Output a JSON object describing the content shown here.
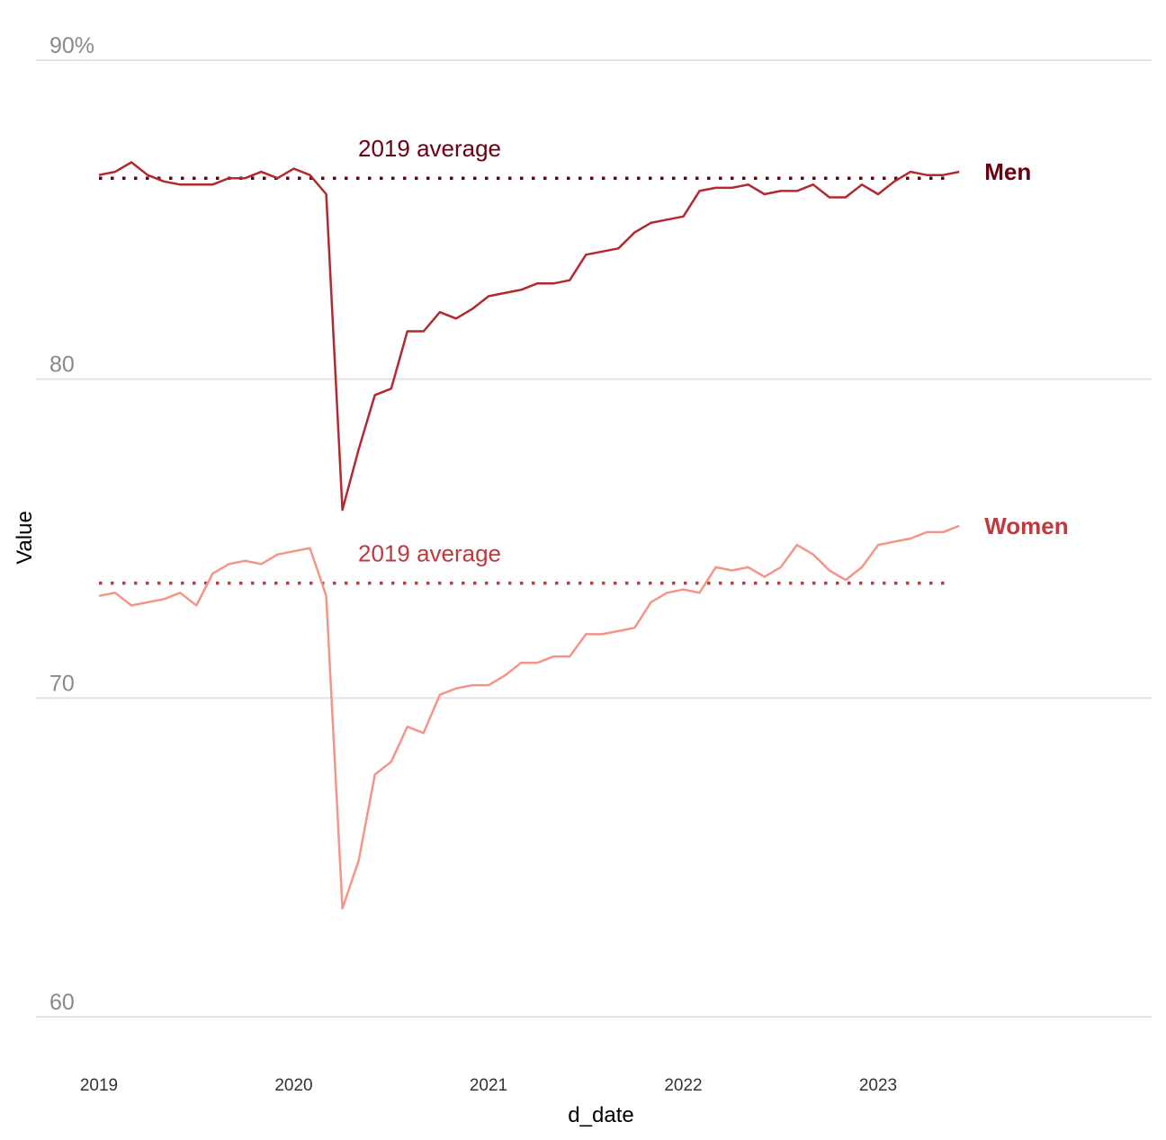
{
  "chart_data": {
    "type": "line",
    "title": "",
    "xlabel": "d_date",
    "ylabel": "Value",
    "xlim": [
      "2019-01",
      "2023-06"
    ],
    "ylim": [
      60,
      90
    ],
    "y_ticks": [
      {
        "value": 90,
        "label": "90%"
      },
      {
        "value": 80,
        "label": "80"
      },
      {
        "value": 70,
        "label": "70"
      },
      {
        "value": 60,
        "label": "60"
      }
    ],
    "x_ticks": [
      {
        "value": "2019-01",
        "label": "2019"
      },
      {
        "value": "2020-01",
        "label": "2020"
      },
      {
        "value": "2021-01",
        "label": "2021"
      },
      {
        "value": "2022-01",
        "label": "2022"
      },
      {
        "value": "2023-01",
        "label": "2023"
      }
    ],
    "grid": true,
    "legend": "none",
    "x": [
      "2019-01",
      "2019-02",
      "2019-03",
      "2019-04",
      "2019-05",
      "2019-06",
      "2019-07",
      "2019-08",
      "2019-09",
      "2019-10",
      "2019-11",
      "2019-12",
      "2020-01",
      "2020-02",
      "2020-03",
      "2020-04",
      "2020-05",
      "2020-06",
      "2020-07",
      "2020-08",
      "2020-09",
      "2020-10",
      "2020-11",
      "2020-12",
      "2021-01",
      "2021-02",
      "2021-03",
      "2021-04",
      "2021-05",
      "2021-06",
      "2021-07",
      "2021-08",
      "2021-09",
      "2021-10",
      "2021-11",
      "2021-12",
      "2022-01",
      "2022-02",
      "2022-03",
      "2022-04",
      "2022-05",
      "2022-06",
      "2022-07",
      "2022-08",
      "2022-09",
      "2022-10",
      "2022-11",
      "2022-12",
      "2023-01",
      "2023-02",
      "2023-03",
      "2023-04",
      "2023-05",
      "2023-06"
    ],
    "series": [
      {
        "name": "Men",
        "color": "#b02a30",
        "label_color": "#6b0011",
        "average": 86.3,
        "average_label": "2019 average",
        "values": [
          86.4,
          86.5,
          86.8,
          86.4,
          86.2,
          86.1,
          86.1,
          86.1,
          86.3,
          86.3,
          86.5,
          86.3,
          86.6,
          86.4,
          85.8,
          75.9,
          77.8,
          79.5,
          79.7,
          81.5,
          81.5,
          82.1,
          81.9,
          82.2,
          82.6,
          82.7,
          82.8,
          83.0,
          83.0,
          83.1,
          83.9,
          84.0,
          84.1,
          84.6,
          84.9,
          85.0,
          85.1,
          85.9,
          86.0,
          86.0,
          86.1,
          85.8,
          85.9,
          85.9,
          86.1,
          85.7,
          85.7,
          86.1,
          85.8,
          86.2,
          86.5,
          86.4,
          86.4,
          86.5
        ]
      },
      {
        "name": "Women",
        "color": "#f4958a",
        "label_color": "#c0393d",
        "average": 73.6,
        "average_label": "2019 average",
        "values": [
          73.2,
          73.3,
          72.9,
          73.0,
          73.1,
          73.3,
          72.9,
          73.9,
          74.2,
          74.3,
          74.2,
          74.5,
          74.6,
          74.7,
          73.2,
          63.4,
          64.9,
          67.6,
          68.0,
          69.1,
          68.9,
          70.1,
          70.3,
          70.4,
          70.4,
          70.7,
          71.1,
          71.1,
          71.3,
          71.3,
          72.0,
          72.0,
          72.1,
          72.2,
          73.0,
          73.3,
          73.4,
          73.3,
          74.1,
          74.0,
          74.1,
          73.8,
          74.1,
          74.8,
          74.5,
          74.0,
          73.7,
          74.1,
          74.8,
          74.9,
          75.0,
          75.2,
          75.2,
          75.4
        ]
      }
    ]
  }
}
